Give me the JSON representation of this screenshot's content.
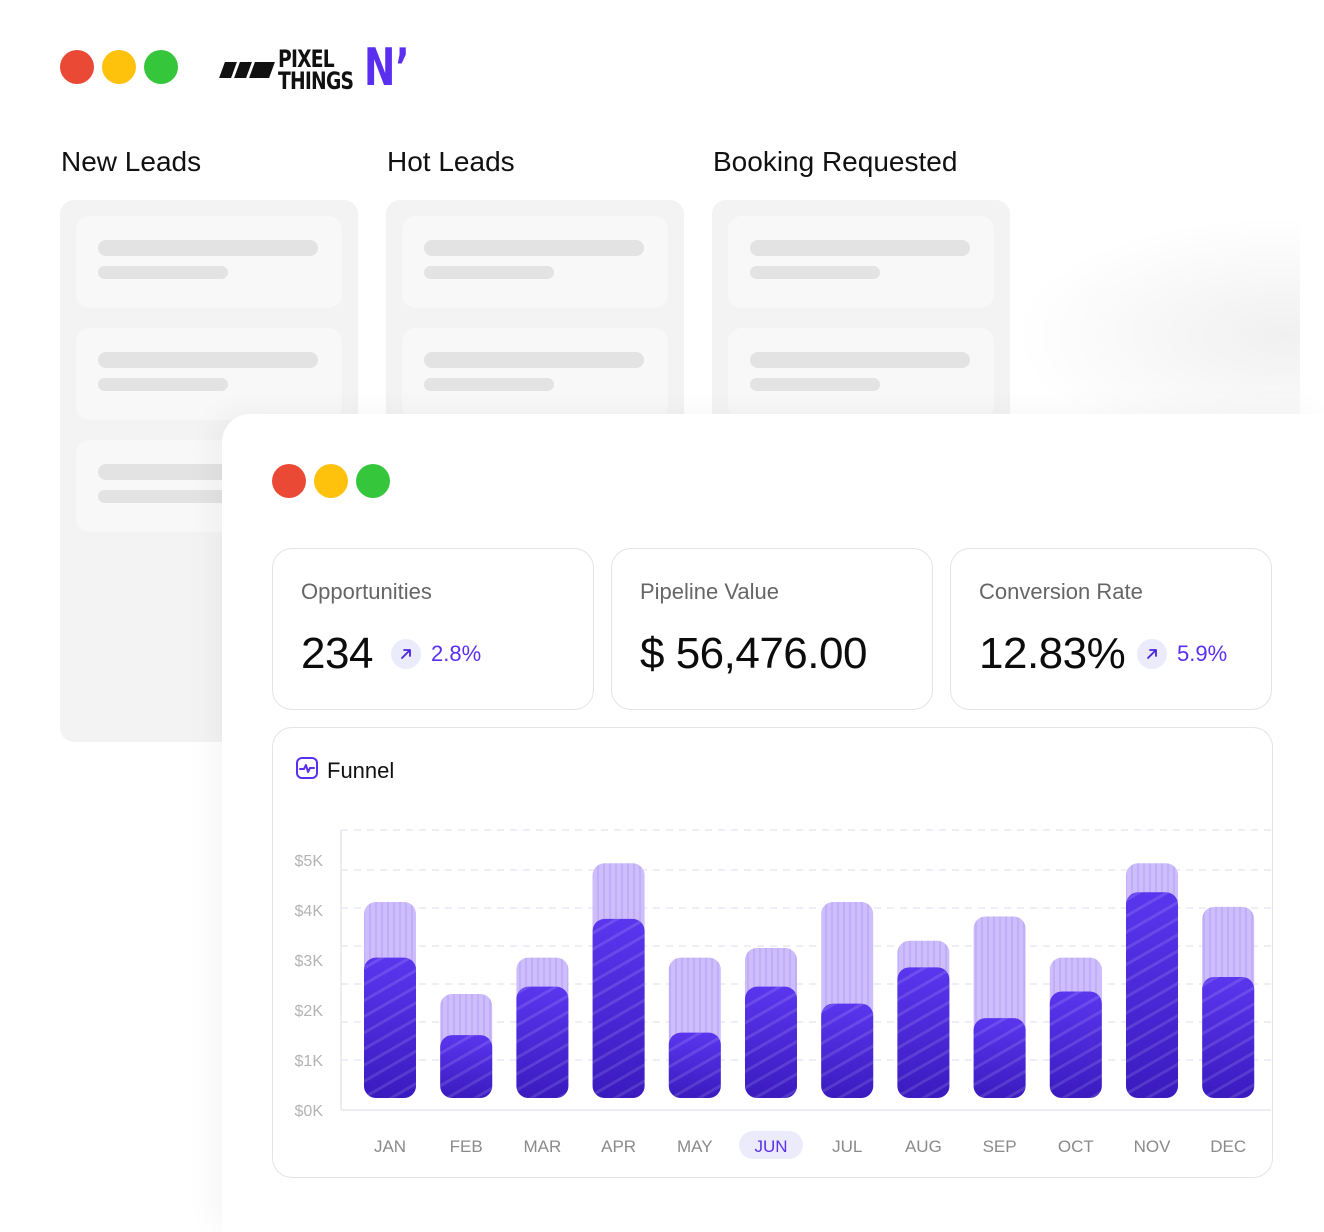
{
  "brand": {
    "line1": "PIXEL",
    "line2": "THINGS",
    "mark": "N’"
  },
  "columns": [
    {
      "title": "New Leads"
    },
    {
      "title": "Hot Leads"
    },
    {
      "title": "Booking Requested"
    }
  ],
  "stats": {
    "opportunities": {
      "label": "Opportunities",
      "value": "234",
      "delta": "2.8%"
    },
    "pipeline": {
      "label": "Pipeline Value",
      "value": "$ 56,476.00"
    },
    "conversion": {
      "label": "Conversion Rate",
      "value": "12.83%",
      "delta": "5.9%"
    }
  },
  "funnel": {
    "title": "Funnel"
  },
  "colors": {
    "accent": "#5a2ff0",
    "bar_light": "#cdbdfb",
    "bar_dark": "#4a26d9",
    "selected_pill": "#ecebfb"
  },
  "icons": [
    "arrow-up-right-icon",
    "chart-pulse-icon"
  ],
  "chart_data": {
    "type": "bar",
    "categories": [
      "JAN",
      "FEB",
      "MAR",
      "APR",
      "MAY",
      "JUN",
      "JUL",
      "AUG",
      "SEP",
      "OCT",
      "NOV",
      "DEC"
    ],
    "selected_category": "JUN",
    "yticks": [
      "$0K",
      "$1K",
      "$2K",
      "$3K",
      "$4K",
      "$5K"
    ],
    "ylim": [
      0,
      5000
    ],
    "series": [
      {
        "values": [
          4050,
          2150,
          2900,
          4850,
          2900,
          3100,
          4050,
          3250,
          3750,
          2900,
          4850,
          3950
        ]
      },
      {
        "values": [
          2900,
          1300,
          2300,
          3700,
          1350,
          2300,
          1950,
          2700,
          1650,
          2200,
          4250,
          2500
        ]
      }
    ],
    "stacked": false,
    "grid": true
  }
}
